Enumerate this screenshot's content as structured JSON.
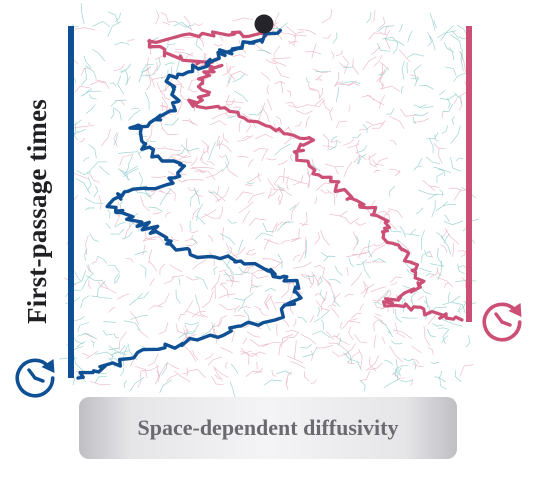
{
  "side_label": "First-passage times",
  "caption": "Space-dependent diffusivity",
  "icons": {
    "left_clock": "clock-arrow-icon",
    "right_clock": "clock-arrow-icon",
    "start_marker": "particle-dot"
  },
  "colors": {
    "blue_trajectory": "#0f4f94",
    "red_trajectory": "#cc4f76",
    "start_dot": "#24242a",
    "water_texture": "#e6a3b4",
    "lipid_texture": "#7fc6c6",
    "label_text": "#1f1f24",
    "caption_text": "#6a6a70"
  }
}
